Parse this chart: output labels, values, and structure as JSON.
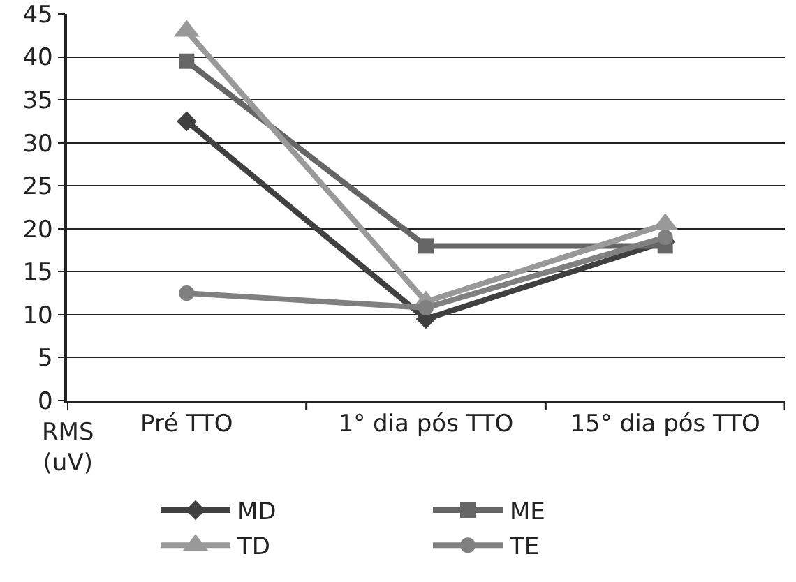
{
  "chart_data": {
    "type": "line",
    "ylabel": "RMS (uV)",
    "categories": [
      "Pré TTO",
      "1° dia pós TTO",
      "15° dia pós TTO"
    ],
    "series": [
      {
        "name": "MD",
        "color": "#404040",
        "marker": "diamond",
        "values": [
          32.5,
          9.5,
          18.5
        ]
      },
      {
        "name": "ME",
        "color": "#666666",
        "marker": "square",
        "values": [
          39.5,
          18,
          18
        ]
      },
      {
        "name": "TD",
        "color": "#999999",
        "marker": "triangle",
        "values": [
          43,
          11.5,
          20.5
        ]
      },
      {
        "name": "TE",
        "color": "#808080",
        "marker": "circle",
        "values": [
          12.5,
          10.8,
          19
        ]
      }
    ],
    "ylim": [
      0,
      45
    ],
    "yticks": [
      0,
      5,
      10,
      15,
      20,
      25,
      30,
      35,
      40,
      45
    ],
    "grid": "y",
    "legend": "bottom"
  }
}
